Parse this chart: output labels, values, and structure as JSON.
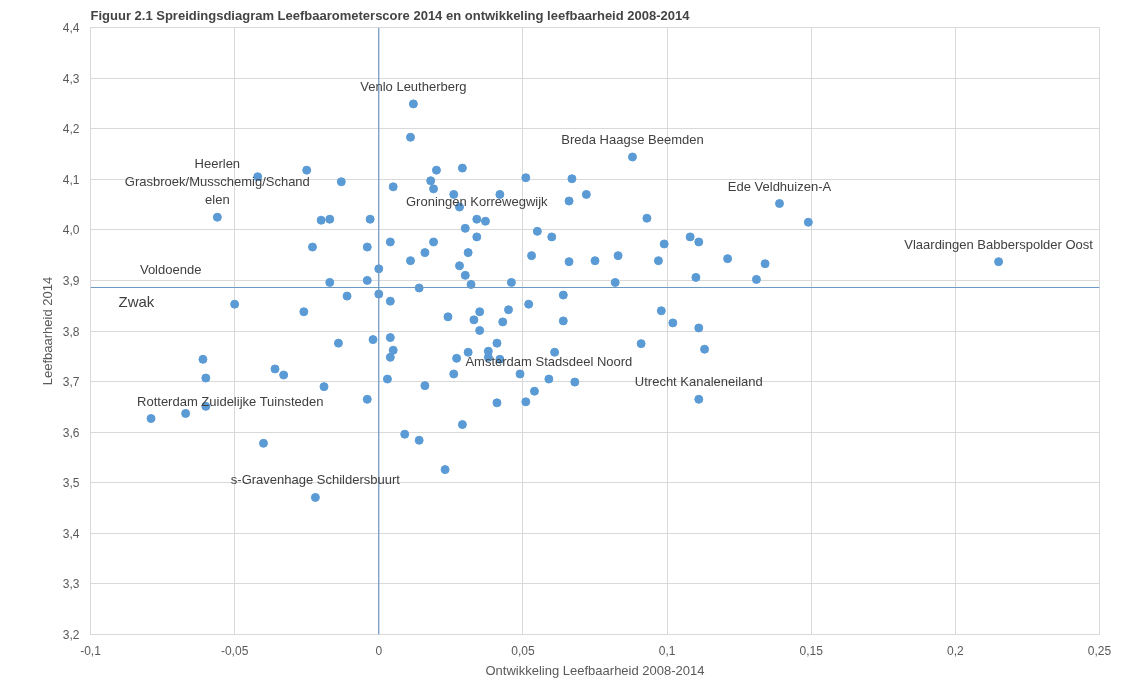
{
  "chart_data": {
    "type": "scatter",
    "title": "Figuur 2.1 Spreidingsdiagram Leefbaarometerscore 2014 en ontwikkeling leefbaarheid 2008-2014",
    "xlabel": "Ontwikkeling Leefbaarheid 2008-2014",
    "ylabel": "Leefbaarheid 2014",
    "x": [
      0.012,
      0.011,
      0.02,
      0.018,
      0.019,
      0.005,
      0.029,
      -0.025,
      -0.042,
      -0.013,
      -0.056,
      -0.02,
      -0.017,
      -0.003,
      -0.023,
      -0.004,
      0.004,
      0.019,
      0.016,
      0.011,
      0.0,
      -0.017,
      -0.004,
      0.014,
      -0.011,
      0.0,
      0.004,
      -0.05,
      -0.026,
      -0.014,
      -0.002,
      0.004,
      0.005,
      0.004,
      -0.061,
      -0.036,
      -0.033,
      -0.06,
      0.003,
      0.016,
      -0.019,
      -0.004,
      -0.06,
      -0.067,
      -0.079,
      0.009,
      0.014,
      -0.04,
      -0.022,
      0.023,
      0.051,
      0.067,
      0.088,
      0.026,
      0.042,
      0.072,
      0.066,
      0.028,
      0.034,
      0.037,
      0.093,
      0.03,
      0.055,
      0.06,
      0.034,
      0.031,
      0.028,
      0.03,
      0.032,
      0.053,
      0.066,
      0.075,
      0.083,
      0.097,
      0.099,
      0.108,
      0.111,
      0.121,
      0.11,
      0.082,
      0.046,
      0.064,
      0.052,
      0.024,
      0.035,
      0.045,
      0.033,
      0.043,
      0.035,
      0.064,
      0.098,
      0.102,
      0.111,
      0.027,
      0.031,
      0.038,
      0.038,
      0.041,
      0.042,
      0.061,
      0.091,
      0.113,
      0.026,
      0.049,
      0.059,
      0.068,
      0.054,
      0.041,
      0.051,
      0.111,
      0.029,
      0.139,
      0.149,
      0.134,
      0.131,
      0.215
    ],
    "series": [
      {
        "color": "#5b9bd5",
        "values": [
          4.249,
          4.183,
          4.118,
          4.097,
          4.081,
          4.085,
          4.122,
          4.118,
          4.105,
          4.095,
          4.025,
          4.019,
          4.021,
          4.021,
          3.966,
          3.966,
          3.976,
          3.976,
          3.955,
          3.939,
          3.923,
          3.896,
          3.9,
          3.885,
          3.869,
          3.873,
          3.859,
          3.853,
          3.838,
          3.776,
          3.783,
          3.787,
          3.762,
          3.748,
          3.744,
          3.725,
          3.713,
          3.707,
          3.705,
          3.692,
          3.69,
          3.665,
          3.651,
          3.637,
          3.627,
          3.596,
          3.584,
          3.578,
          3.471,
          3.526,
          4.103,
          4.101,
          4.144,
          4.07,
          4.07,
          4.07,
          4.057,
          4.045,
          4.021,
          4.017,
          4.023,
          4.003,
          3.997,
          3.986,
          3.986,
          3.955,
          3.929,
          3.91,
          3.892,
          3.949,
          3.937,
          3.939,
          3.949,
          3.939,
          3.972,
          3.986,
          3.976,
          3.943,
          3.906,
          3.896,
          3.896,
          3.871,
          3.853,
          3.828,
          3.838,
          3.842,
          3.822,
          3.818,
          3.801,
          3.82,
          3.84,
          3.816,
          3.806,
          3.746,
          3.758,
          3.76,
          3.748,
          3.776,
          3.744,
          3.758,
          3.775,
          3.764,
          3.715,
          3.715,
          3.705,
          3.699,
          3.681,
          3.658,
          3.66,
          3.665,
          3.615,
          4.052,
          4.015,
          3.933,
          3.902,
          3.937
        ]
      }
    ],
    "xlim": [
      -0.1,
      0.25
    ],
    "xticks": [
      {
        "value": -0.1,
        "label": "-0,1"
      },
      {
        "value": -0.05,
        "label": "-0,05"
      },
      0,
      {
        "value": 0.05,
        "label": "0,05"
      },
      {
        "value": 0.1,
        "label": "0,1"
      },
      {
        "value": 0.15,
        "label": "0,15"
      },
      {
        "value": 0.2,
        "label": "0,2"
      },
      {
        "value": 0.25,
        "label": "0,25"
      }
    ],
    "ylim": [
      3.2,
      4.4
    ],
    "yticks": [
      {
        "value": 3.2,
        "label": "3,2"
      },
      {
        "value": 3.3,
        "label": "3,3"
      },
      {
        "value": 3.4,
        "label": "3,4"
      },
      {
        "value": 3.5,
        "label": "3,5"
      },
      {
        "value": 3.6,
        "label": "3,6"
      },
      {
        "value": 3.7,
        "label": "3,7"
      },
      {
        "value": 3.8,
        "label": "3,8"
      },
      {
        "value": 3.9,
        "label": "3,9"
      },
      {
        "value": 4.0,
        "label": "4,0"
      },
      {
        "value": 4.1,
        "label": "4,1"
      },
      {
        "value": 4.2,
        "label": "4,2"
      },
      {
        "value": 4.3,
        "label": "4,3"
      },
      {
        "value": 4.4,
        "label": "4,4"
      }
    ],
    "grid": true,
    "marker": "circle",
    "ref_lines": [
      {
        "axis": "y",
        "value": 3.886,
        "label": "Zwak",
        "color": "#6d9ac4"
      },
      {
        "axis": "x",
        "value": 0,
        "label": null,
        "color": "#6d9ac4"
      }
    ],
    "annotations": [
      {
        "text": "Venlo Leutherberg",
        "x": 0.012,
        "y": 4.249
      },
      {
        "text": "Heerlen\nGrasbroek/Musschemig/Schand\nelen",
        "x": -0.056,
        "y": 4.025
      },
      {
        "text": "Breda Haagse Beemden",
        "x": 0.088,
        "y": 4.144
      },
      {
        "text": "Ede Veldhuizen-A",
        "x": 0.139,
        "y": 4.052
      },
      {
        "text": "Groningen Korrewegwijk",
        "x": 0.034,
        "y": 4.021
      },
      {
        "text": "Vlaardingen Babberspolder Oost",
        "x": 0.215,
        "y": 3.937
      },
      {
        "text": "Amsterdam Stadsdeel Noord",
        "x": 0.059,
        "y": 3.705
      },
      {
        "text": "Utrecht Kanaleneiland",
        "x": 0.111,
        "y": 3.665
      },
      {
        "text": "Rotterdam Zuidelijke Tuinsteden",
        "x": -0.079,
        "y": 3.627
      },
      {
        "text": "s-Gravenhage Schildersbuurt",
        "x": -0.022,
        "y": 3.471
      },
      {
        "text": "Voldoende",
        "x": -0.078,
        "y": 3.886
      }
    ]
  }
}
